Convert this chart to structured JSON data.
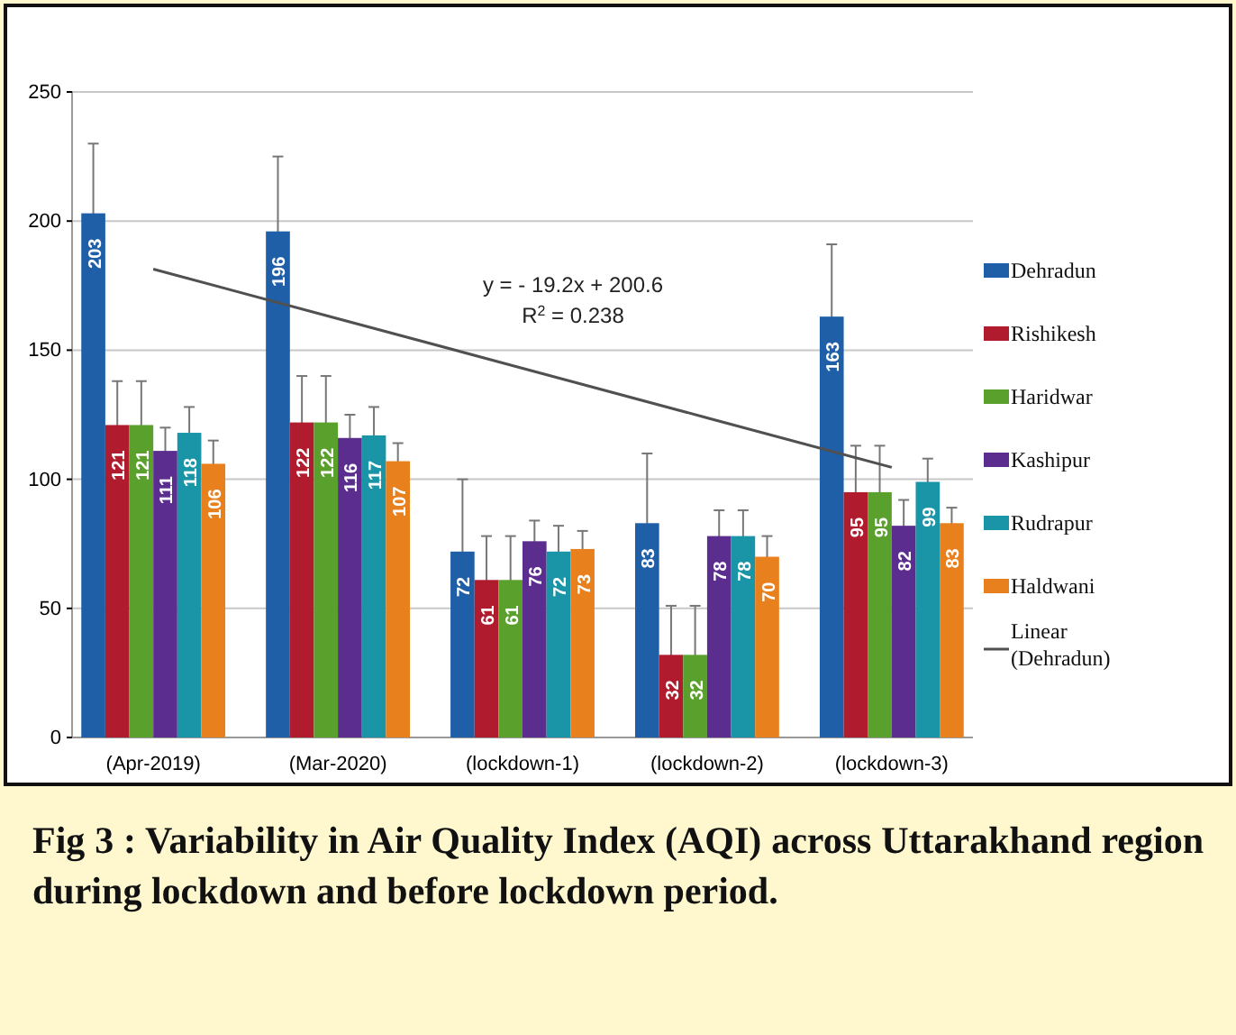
{
  "chart_data": {
    "type": "bar",
    "title": "Fig 3 : Variability in Air Quality Index (AQI) across Uttarakhand region during lockdown and before lockdown period.",
    "categories": [
      "(Apr-2019)",
      "(Mar-2020)",
      "(lockdown-1)",
      "(lockdown-2)",
      "(lockdown-3)"
    ],
    "series": [
      {
        "name": "Dehradun",
        "color": "#1f5fa8",
        "values": [
          203,
          196,
          72,
          83,
          163
        ],
        "errors": [
          27,
          29,
          28,
          27,
          28
        ],
        "value_labels": [
          "203",
          "196",
          "72",
          "83",
          "163"
        ]
      },
      {
        "name": "Rishikesh",
        "color": "#b01c2e",
        "values": [
          121,
          122,
          61,
          32,
          95
        ],
        "errors": [
          17,
          18,
          17,
          19,
          18
        ],
        "value_labels": [
          "121",
          "122",
          "61",
          "32",
          "95"
        ]
      },
      {
        "name": "Haridwar",
        "color": "#5aa02c",
        "values": [
          121,
          122,
          61,
          32,
          95
        ],
        "errors": [
          17,
          18,
          17,
          19,
          18
        ],
        "value_labels": [
          "121",
          "122",
          "61",
          "32",
          "95"
        ]
      },
      {
        "name": "Kashipur",
        "color": "#5b2d8e",
        "values": [
          111,
          116,
          76,
          78,
          82
        ],
        "errors": [
          9,
          9,
          8,
          10,
          10
        ],
        "value_labels": [
          "111",
          "116",
          "76",
          "78",
          "82"
        ]
      },
      {
        "name": "Rudrapur",
        "color": "#1a95a8",
        "values": [
          118,
          117,
          72,
          78,
          99
        ],
        "errors": [
          10,
          11,
          10,
          10,
          9
        ],
        "value_labels": [
          "118",
          "117",
          "72",
          "78",
          "99"
        ]
      },
      {
        "name": "Haldwani",
        "color": "#e8801e",
        "values": [
          106,
          107,
          73,
          70,
          83
        ],
        "errors": [
          9,
          7,
          7,
          8,
          6
        ],
        "value_labels": [
          "106",
          "107",
          "73",
          "70",
          "83"
        ]
      },
      {
        "name": "Linear (Dehradun)",
        "type": "line",
        "color": "#505050",
        "values": [
          181.4,
          162.2,
          143,
          123.8,
          104.6
        ]
      }
    ],
    "ylim": [
      0,
      250
    ],
    "yticks": [
      0,
      50,
      100,
      150,
      200,
      250
    ],
    "grid": "y",
    "legend": "right",
    "marker": "none",
    "annotations": [
      "y = - 19.2x + 200.6",
      "R$^{2}$ = 0.238"
    ]
  }
}
